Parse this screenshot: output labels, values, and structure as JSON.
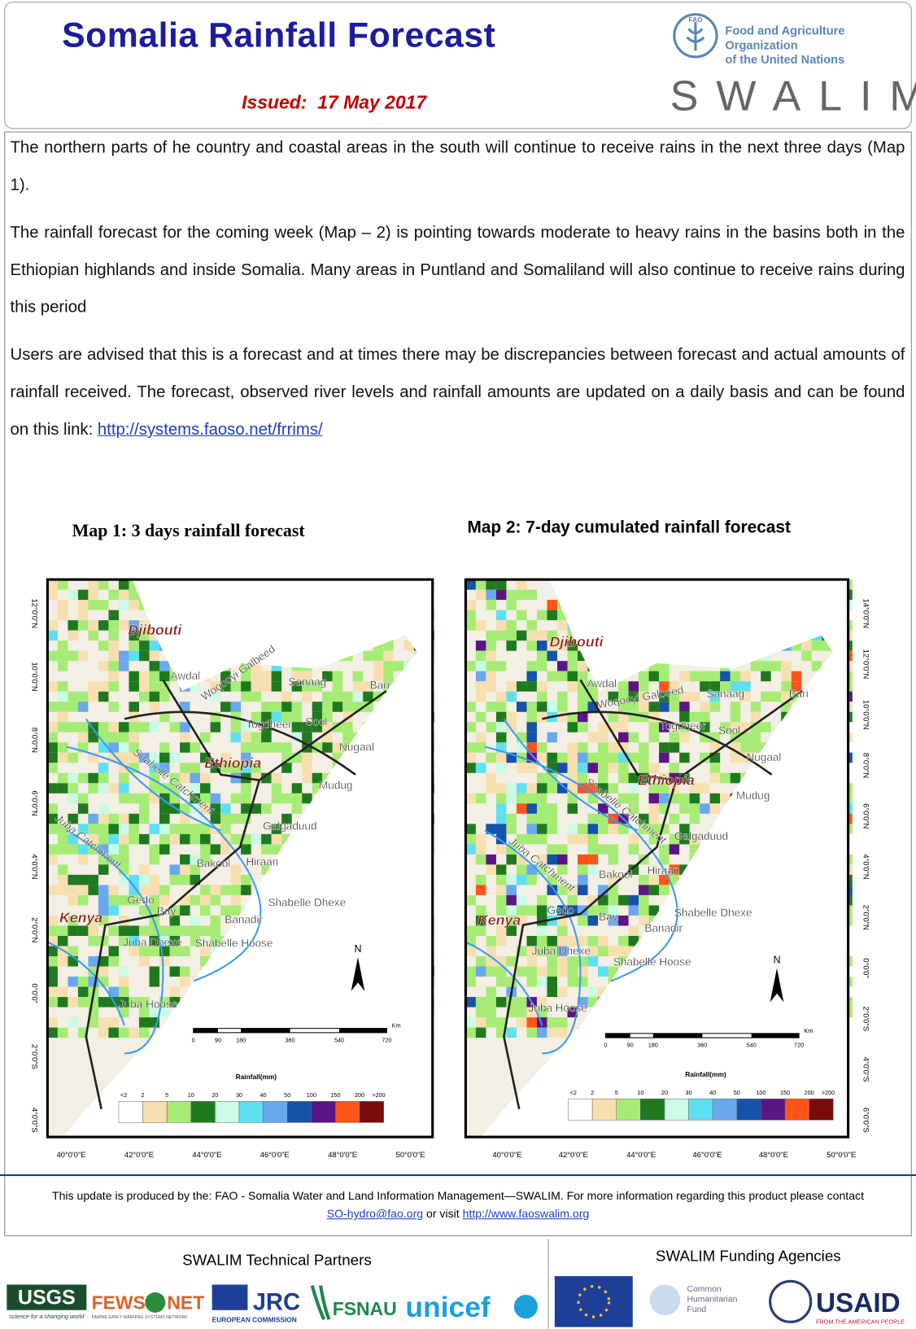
{
  "header": {
    "title": "Somalia Rainfall Forecast",
    "issued_label": "Issued:",
    "issued_date": "17 May 2017",
    "org_line1": "Food and Agriculture Organization",
    "org_line2": "of the United Nations",
    "fao": "FAO",
    "swalim": "SWALIM"
  },
  "body": {
    "paragraphs": [
      "The northern parts of he country and coastal areas in the south will continue to receive rains in the next three days (Map 1).",
      "The rainfall forecast for the coming week (Map – 2) is pointing towards moderate to heavy rains in the basins both in the Ethiopian highlands and inside Somalia. Many areas in Puntland and Somaliland will also continue to receive rains during this period",
      "Users are  advised that this is a forecast  and at times there may be discrepancies between forecast and actual amounts of rainfall received. The forecast, observed river levels and rainfall amounts are updated on a daily basis and can be found on this link: "
    ],
    "link": "http://systems.faoso.net/frrims/"
  },
  "maps": [
    {
      "title": "Map 1: 3 days rainfall forecast",
      "regions": [
        "Djibouti",
        "Awdal",
        "Woqooyi Galbeed",
        "Sanaag",
        "Bari",
        "Togdheer",
        "Sool",
        "Nugaal",
        "Ethiopia",
        "Mudug",
        "Shabelle Catchment",
        "Juba Catchment",
        "Galgaduud",
        "Bakool",
        "Hiraan",
        "Gedo",
        "Kenya",
        "Bay",
        "Shabelle Dhexe",
        "Banadir",
        "Juba Dhexe",
        "Shabelle Hoose",
        "Juba Hoose"
      ],
      "lat_labels": [
        "12°0'0\"N",
        "10°0'0\"N",
        "8°0'0\"N",
        "6°0'0\"N",
        "4°0'0\"N",
        "2°0'0\"N",
        "0°0'0\"",
        "2°0'0\"S",
        "4°0'0\"S"
      ],
      "lon_labels": [
        "40°0'0\"E",
        "42°0'0\"E",
        "44°0'0\"E",
        "46°0'0\"E",
        "48°0'0\"E",
        "50°0'0\"E"
      ]
    },
    {
      "title": "Map 2: 7-day cumulated rainfall forecast",
      "regions": [
        "Djibouti",
        "Awdal",
        "Woqooyi Galbeed",
        "Sanaag",
        "Bari",
        "Togdheer",
        "Sool",
        "Nugaal",
        "Ethiopia",
        "Mudug",
        "Shabelle Catchment",
        "Juba Catchment",
        "Galgaduud",
        "Bakool",
        "Hiraan",
        "Gedo",
        "Kenya",
        "Bay",
        "Shabelle Dhexe",
        "Banadir",
        "Juba Dhexe",
        "Shabelle Hoose",
        "Juba Hoose"
      ],
      "lat_labels": [
        "14°0'0\"N",
        "12°0'0\"N",
        "10°0'0\"N",
        "8°0'0\"N",
        "6°0'0\"N",
        "4°0'0\"N",
        "2°0'0\"N",
        "0°0'0\"",
        "2°0'0\"S",
        "4°0'0\"S",
        "6°0'0\"S"
      ],
      "lon_labels": [
        "40°0'0\"E",
        "42°0'0\"E",
        "44°0'0\"E",
        "46°0'0\"E",
        "48°0'0\"E",
        "50°0'0\"E"
      ]
    }
  ],
  "legend": {
    "title": "Rainfall(mm)",
    "labels": [
      "<2",
      "2",
      "5",
      "10",
      "20",
      "30",
      "40",
      "50",
      "100",
      "150",
      "200",
      ">200"
    ],
    "colors": [
      "#ffffff",
      "#f7dfb0",
      "#a6ec74",
      "#1f7a1f",
      "#c9fbe6",
      "#5fe0f0",
      "#6aa8ee",
      "#1552a8",
      "#5b1585",
      "#ff5518",
      "#7a0b0b"
    ],
    "scale": [
      "0",
      "90",
      "180",
      "360",
      "540",
      "720"
    ],
    "scale_unit": "Km",
    "north": "N"
  },
  "footer": {
    "text": "This update is produced by the: FAO - Somalia Water and Land Information Management—SWALIM. For more information regarding this product please contact",
    "email": "SO-hydro@fao.org",
    "or_visit": " or visit ",
    "url": "http://www.faoswalim.org"
  },
  "partners": {
    "title": "SWALIM Technical Partners",
    "logos": [
      "USGS",
      "science for a changing world",
      "FEWS",
      "NET",
      "FAMINE EARLY WARNING SYSTEMS NETWORK",
      "JRC",
      "EUROPEAN COMMISSION",
      "FSNAU",
      "unicef"
    ]
  },
  "funders": {
    "title": "SWALIM Funding Agencies",
    "logos": [
      "Common",
      "Humanitarian",
      "Fund",
      "USAID",
      "FROM THE AMERICAN PEOPLE"
    ]
  }
}
